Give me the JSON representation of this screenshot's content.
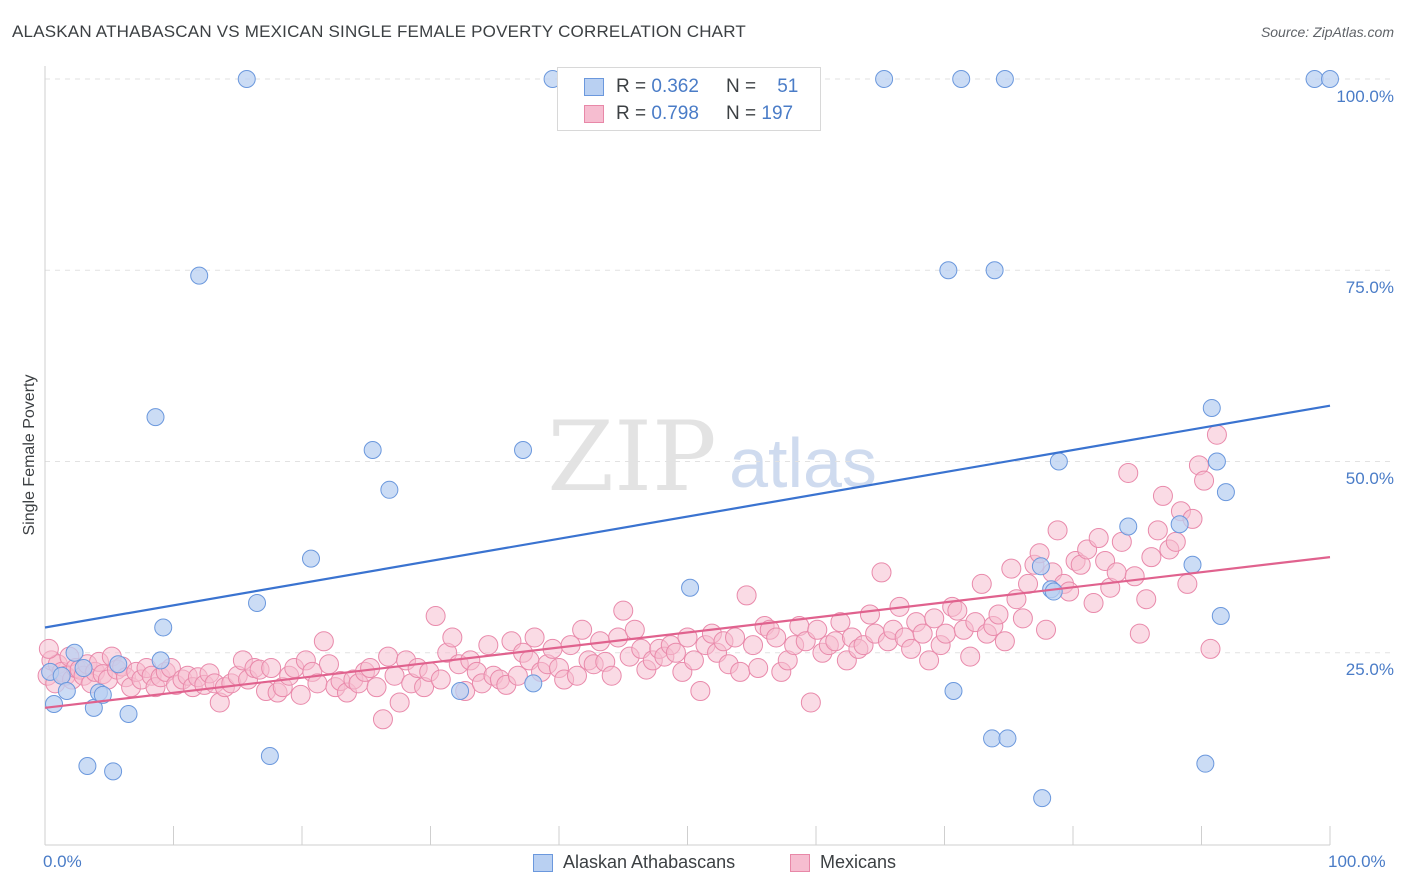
{
  "title": "ALASKAN ATHABASCAN VS MEXICAN SINGLE FEMALE POVERTY CORRELATION CHART",
  "source": "Source: ZipAtlas.com",
  "watermark": {
    "zip": "ZIP",
    "atlas": "atlas"
  },
  "colors": {
    "blue": "#3a73d0",
    "blue_fill": "#b9d0f2",
    "pink": "#e0628e",
    "pink_fill": "#f6bdd0",
    "tick_text": "#4a7cc7"
  },
  "legend": {
    "rows": [
      {
        "r_label": "R = ",
        "r_value": "0.362",
        "n_label": "N = ",
        "n_value": "51"
      },
      {
        "r_label": "R = ",
        "r_value": "0.798",
        "n_label": "N = ",
        "n_value": "197"
      }
    ]
  },
  "bottom_legend": [
    "Alaskan Athabascans",
    "Mexicans"
  ],
  "chart_data": {
    "type": "scatter",
    "title": "ALASKAN ATHABASCAN VS MEXICAN SINGLE FEMALE POVERTY CORRELATION CHART",
    "xlabel": "",
    "ylabel": "Single Female Poverty",
    "xlim": [
      0,
      100
    ],
    "ylim": [
      0,
      100
    ],
    "x_tick_labels": [
      "0.0%",
      "100.0%"
    ],
    "y_tick_labels": [
      "25.0%",
      "50.0%",
      "75.0%",
      "100.0%"
    ],
    "y_ticks": [
      25,
      50,
      75,
      100
    ],
    "grid": "horizontal dashed",
    "legend_placement": "top-center",
    "series": [
      {
        "name": "Alaskan Athabascans",
        "r": 0.362,
        "n": 51,
        "trend": {
          "x": [
            0,
            100
          ],
          "y": [
            28.3,
            57.3
          ]
        },
        "points": [
          [
            0.4,
            22.5
          ],
          [
            0.7,
            18.3
          ],
          [
            1.3,
            22.0
          ],
          [
            1.7,
            20.0
          ],
          [
            2.3,
            25.0
          ],
          [
            3.0,
            23.0
          ],
          [
            3.8,
            17.8
          ],
          [
            4.2,
            19.8
          ],
          [
            4.5,
            19.5
          ],
          [
            3.3,
            10.2
          ],
          [
            5.3,
            9.5
          ],
          [
            5.7,
            23.5
          ],
          [
            6.5,
            17.0
          ],
          [
            8.6,
            55.8
          ],
          [
            9.0,
            24.0
          ],
          [
            9.2,
            28.3
          ],
          [
            12.0,
            74.3
          ],
          [
            15.7,
            100
          ],
          [
            16.5,
            31.5
          ],
          [
            17.5,
            11.5
          ],
          [
            20.7,
            37.3
          ],
          [
            25.5,
            51.5
          ],
          [
            26.8,
            46.3
          ],
          [
            32.3,
            20.0
          ],
          [
            37.2,
            51.5
          ],
          [
            38.0,
            21.0
          ],
          [
            39.5,
            100
          ],
          [
            50.2,
            33.5
          ],
          [
            65.3,
            100
          ],
          [
            70.3,
            75.0
          ],
          [
            70.7,
            20.0
          ],
          [
            71.3,
            100
          ],
          [
            73.7,
            13.8
          ],
          [
            73.9,
            75.0
          ],
          [
            74.7,
            100
          ],
          [
            74.9,
            13.8
          ],
          [
            77.5,
            36.3
          ],
          [
            77.6,
            6.0
          ],
          [
            78.3,
            33.3
          ],
          [
            78.5,
            33.0
          ],
          [
            78.9,
            50.0
          ],
          [
            84.3,
            41.5
          ],
          [
            88.3,
            41.8
          ],
          [
            89.3,
            36.5
          ],
          [
            90.3,
            10.5
          ],
          [
            90.8,
            57.0
          ],
          [
            91.2,
            50.0
          ],
          [
            91.5,
            29.8
          ],
          [
            91.9,
            46.0
          ],
          [
            98.8,
            100
          ],
          [
            100.0,
            100
          ]
        ]
      },
      {
        "name": "Mexicans",
        "r": 0.798,
        "n": 197,
        "trend": {
          "x": [
            0,
            100
          ],
          "y": [
            17.8,
            37.5
          ]
        },
        "points": [
          [
            0.2,
            22
          ],
          [
            0.5,
            24
          ],
          [
            0.8,
            21
          ],
          [
            1.0,
            23.5
          ],
          [
            1.3,
            22.5
          ],
          [
            1.6,
            22
          ],
          [
            1.9,
            24.5
          ],
          [
            2.1,
            21.5
          ],
          [
            2.4,
            23
          ],
          [
            2.7,
            22.8
          ],
          [
            3.0,
            22
          ],
          [
            3.3,
            23.5
          ],
          [
            3.6,
            21
          ],
          [
            3.9,
            22.5
          ],
          [
            4.2,
            23.8
          ],
          [
            4.5,
            22.2
          ],
          [
            4.9,
            21.5
          ],
          [
            5.2,
            24.5
          ],
          [
            5.6,
            22.8
          ],
          [
            6.0,
            23.2
          ],
          [
            6.3,
            21.8
          ],
          [
            6.7,
            20.5
          ],
          [
            7.1,
            22.5
          ],
          [
            7.5,
            21.5
          ],
          [
            7.9,
            23
          ],
          [
            8.3,
            22
          ],
          [
            8.6,
            20.5
          ],
          [
            9.0,
            21.8
          ],
          [
            9.4,
            22.5
          ],
          [
            9.8,
            23
          ],
          [
            10.2,
            20.8
          ],
          [
            10.7,
            21.5
          ],
          [
            11.1,
            22
          ],
          [
            11.5,
            20.5
          ],
          [
            11.9,
            21.8
          ],
          [
            12.4,
            20.8
          ],
          [
            12.8,
            22.3
          ],
          [
            13.2,
            21
          ],
          [
            13.6,
            18.5
          ],
          [
            14.0,
            20.5
          ],
          [
            14.5,
            21
          ],
          [
            15.0,
            22
          ],
          [
            15.4,
            24
          ],
          [
            15.8,
            21.5
          ],
          [
            16.3,
            23
          ],
          [
            16.7,
            22.8
          ],
          [
            17.2,
            20
          ],
          [
            17.6,
            23
          ],
          [
            18.1,
            19.8
          ],
          [
            18.5,
            20.5
          ],
          [
            19.0,
            22
          ],
          [
            19.4,
            23
          ],
          [
            19.9,
            19.5
          ],
          [
            20.3,
            24
          ],
          [
            20.8,
            22.5
          ],
          [
            21.2,
            21
          ],
          [
            21.7,
            26.5
          ],
          [
            22.1,
            23.5
          ],
          [
            22.6,
            20.5
          ],
          [
            23.0,
            21.3
          ],
          [
            23.5,
            19.8
          ],
          [
            24.0,
            21.5
          ],
          [
            24.4,
            21
          ],
          [
            24.9,
            22.5
          ],
          [
            25.3,
            23
          ],
          [
            25.8,
            20.5
          ],
          [
            26.3,
            16.3
          ],
          [
            26.7,
            24.5
          ],
          [
            27.2,
            22
          ],
          [
            27.6,
            18.5
          ],
          [
            28.1,
            24
          ],
          [
            28.5,
            21
          ],
          [
            29.0,
            23
          ],
          [
            29.5,
            20.5
          ],
          [
            29.9,
            22.5
          ],
          [
            30.4,
            29.8
          ],
          [
            30.8,
            21.5
          ],
          [
            31.3,
            25
          ],
          [
            31.7,
            27
          ],
          [
            32.2,
            23.5
          ],
          [
            32.7,
            20
          ],
          [
            33.1,
            24
          ],
          [
            33.6,
            22.5
          ],
          [
            34.0,
            21
          ],
          [
            34.5,
            26
          ],
          [
            34.9,
            22
          ],
          [
            35.4,
            21.5
          ],
          [
            35.9,
            20.8
          ],
          [
            36.3,
            26.5
          ],
          [
            36.8,
            22
          ],
          [
            37.2,
            25
          ],
          [
            37.7,
            24
          ],
          [
            38.1,
            27
          ],
          [
            38.6,
            22.5
          ],
          [
            39.1,
            23.5
          ],
          [
            39.5,
            25.5
          ],
          [
            40.0,
            23
          ],
          [
            40.4,
            21.5
          ],
          [
            40.9,
            26
          ],
          [
            41.4,
            22
          ],
          [
            41.8,
            28
          ],
          [
            42.3,
            24
          ],
          [
            42.7,
            23.5
          ],
          [
            43.2,
            26.5
          ],
          [
            43.6,
            23.8
          ],
          [
            44.1,
            22
          ],
          [
            44.6,
            27
          ],
          [
            45.0,
            30.5
          ],
          [
            45.5,
            24.5
          ],
          [
            45.9,
            28
          ],
          [
            46.4,
            25.5
          ],
          [
            46.8,
            22.8
          ],
          [
            47.3,
            24
          ],
          [
            47.8,
            25.5
          ],
          [
            48.2,
            24.5
          ],
          [
            48.7,
            26
          ],
          [
            49.1,
            25
          ],
          [
            49.6,
            22.5
          ],
          [
            50.0,
            27
          ],
          [
            50.5,
            24
          ],
          [
            51.0,
            20
          ],
          [
            51.4,
            26
          ],
          [
            51.9,
            27.5
          ],
          [
            52.3,
            25
          ],
          [
            52.8,
            26.5
          ],
          [
            53.2,
            23.5
          ],
          [
            53.7,
            27
          ],
          [
            54.1,
            22.5
          ],
          [
            54.6,
            32.5
          ],
          [
            55.1,
            26
          ],
          [
            55.5,
            23
          ],
          [
            56.0,
            28.5
          ],
          [
            56.4,
            28
          ],
          [
            56.9,
            27
          ],
          [
            57.3,
            22.5
          ],
          [
            57.8,
            24
          ],
          [
            58.3,
            26
          ],
          [
            58.7,
            28.5
          ],
          [
            59.2,
            26.5
          ],
          [
            59.6,
            18.5
          ],
          [
            60.1,
            28
          ],
          [
            60.5,
            25
          ],
          [
            61.0,
            26
          ],
          [
            61.5,
            26.5
          ],
          [
            61.9,
            29
          ],
          [
            62.4,
            24
          ],
          [
            62.8,
            27
          ],
          [
            63.3,
            25.5
          ],
          [
            63.7,
            26
          ],
          [
            64.2,
            30
          ],
          [
            64.6,
            27.5
          ],
          [
            65.1,
            35.5
          ],
          [
            65.6,
            26.5
          ],
          [
            66.0,
            28
          ],
          [
            66.5,
            31
          ],
          [
            66.9,
            27
          ],
          [
            67.4,
            25.5
          ],
          [
            67.8,
            29
          ],
          [
            68.3,
            27.5
          ],
          [
            68.8,
            24
          ],
          [
            69.2,
            29.5
          ],
          [
            69.7,
            26
          ],
          [
            70.1,
            27.5
          ],
          [
            70.6,
            31
          ],
          [
            71.0,
            30.5
          ],
          [
            71.5,
            28
          ],
          [
            72.0,
            24.5
          ],
          [
            72.4,
            29
          ],
          [
            72.9,
            34
          ],
          [
            73.3,
            27.5
          ],
          [
            73.8,
            28.5
          ],
          [
            74.2,
            30
          ],
          [
            74.7,
            26.5
          ],
          [
            75.2,
            36
          ],
          [
            75.6,
            32
          ],
          [
            76.1,
            29.5
          ],
          [
            76.5,
            34
          ],
          [
            77.0,
            36.5
          ],
          [
            77.4,
            38
          ],
          [
            77.9,
            28
          ],
          [
            78.4,
            35.5
          ],
          [
            78.8,
            41
          ],
          [
            79.3,
            34
          ],
          [
            79.7,
            33
          ],
          [
            80.2,
            37
          ],
          [
            80.6,
            36.5
          ],
          [
            81.1,
            38.5
          ],
          [
            81.6,
            31.5
          ],
          [
            82.0,
            40
          ],
          [
            82.5,
            37
          ],
          [
            82.9,
            33.5
          ],
          [
            83.4,
            35.5
          ],
          [
            83.8,
            39.5
          ],
          [
            84.3,
            48.5
          ],
          [
            84.8,
            35
          ],
          [
            85.2,
            27.5
          ],
          [
            85.7,
            32
          ],
          [
            86.1,
            37.5
          ],
          [
            86.6,
            41
          ],
          [
            87.0,
            45.5
          ],
          [
            87.5,
            38.5
          ],
          [
            88.0,
            39.5
          ],
          [
            88.4,
            43.5
          ],
          [
            88.9,
            34
          ],
          [
            89.3,
            42.5
          ],
          [
            89.8,
            49.5
          ],
          [
            90.2,
            47.5
          ],
          [
            90.7,
            25.5
          ],
          [
            91.2,
            53.5
          ],
          [
            0.3,
            25.5
          ]
        ]
      }
    ]
  }
}
